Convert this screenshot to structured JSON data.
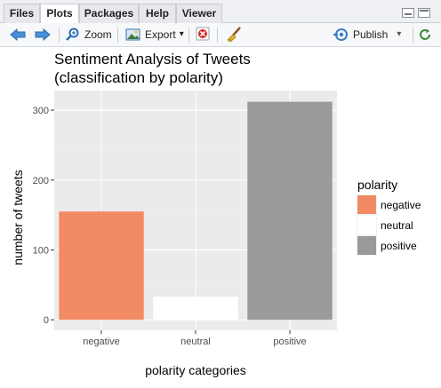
{
  "tabs": [
    {
      "label": "Files"
    },
    {
      "label": "Plots"
    },
    {
      "label": "Packages"
    },
    {
      "label": "Help"
    },
    {
      "label": "Viewer"
    }
  ],
  "toolbar": {
    "zoom_label": "Zoom",
    "export_label": "Export",
    "export_caret": "▾",
    "publish_label": "Publish",
    "publish_caret": "▾"
  },
  "colors": {
    "negative": "#f28b64",
    "neutral": "#ffffff",
    "positive": "#9a9a9a",
    "panel_bg": "#ebebeb"
  },
  "chart_data": {
    "type": "bar",
    "title": "Sentiment Analysis of Tweets",
    "subtitle": "(classification by polarity)",
    "xlabel": "polarity categories",
    "ylabel": "number of tweets",
    "categories": [
      "negative",
      "neutral",
      "positive"
    ],
    "values": [
      155,
      33,
      312
    ],
    "yticks": [
      0,
      100,
      200,
      300
    ],
    "ylim": [
      -15,
      328
    ],
    "grid": true,
    "legend": {
      "title": "polarity",
      "position": "right",
      "entries": [
        "negative",
        "neutral",
        "positive"
      ]
    }
  }
}
